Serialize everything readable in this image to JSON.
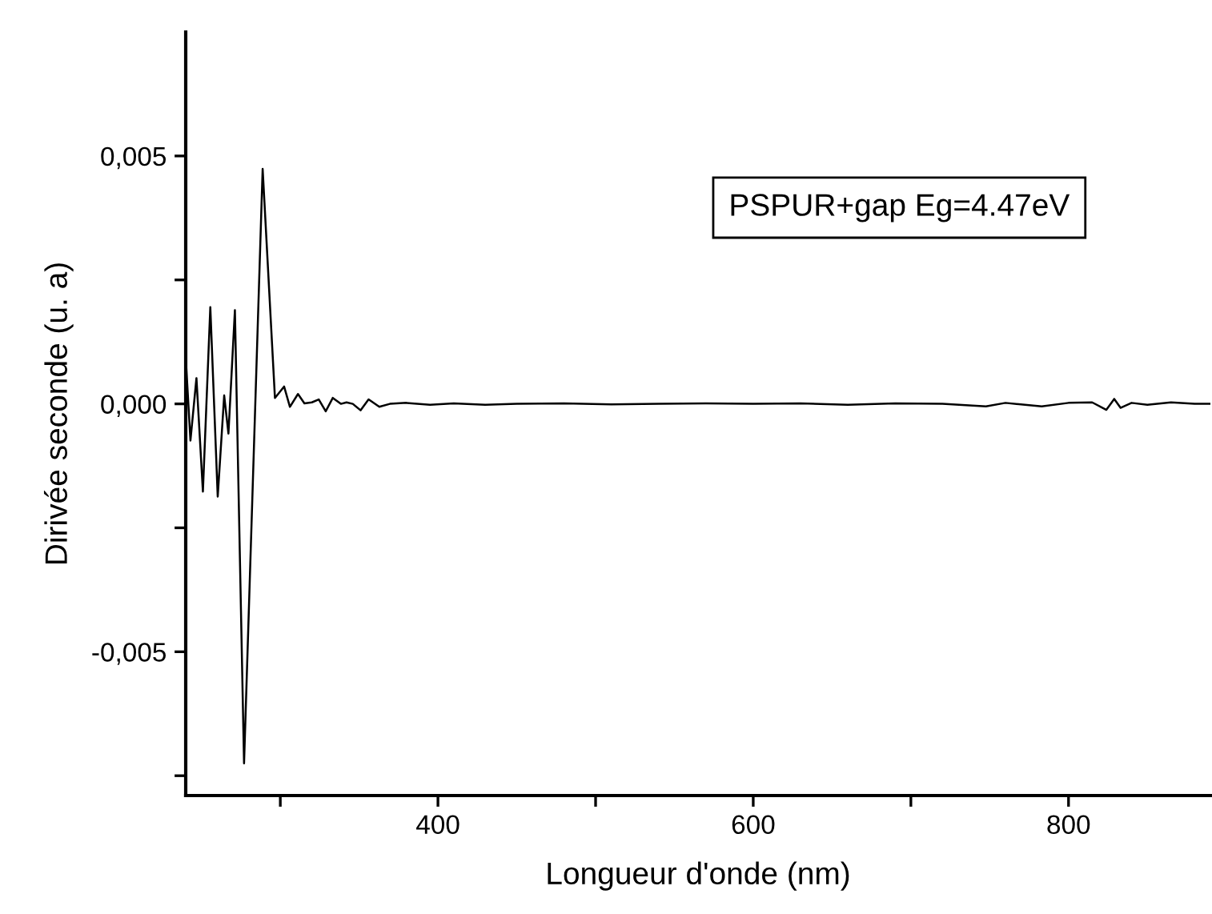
{
  "chart_data": {
    "type": "line",
    "xlabel": "Longueur d'onde (nm)",
    "ylabel": "Dirivée seconde (u. a)",
    "annotations": [
      "PSPUR+gap Eg=4.47eV"
    ],
    "x": [
      240,
      243,
      246.8,
      250.9,
      255.6,
      260.3,
      264.4,
      267.1,
      271.2,
      277,
      288.8,
      296.6,
      302.4,
      306.1,
      311.2,
      315.3,
      320,
      324.4,
      328.8,
      333.3,
      338.4,
      342,
      346,
      350.9,
      356,
      362.8,
      369.5,
      380,
      395,
      410,
      430,
      450,
      480,
      510,
      540,
      570,
      600,
      630,
      660,
      690,
      720,
      747.6,
      760,
      783,
      800,
      815,
      824,
      829,
      833,
      840,
      850,
      865,
      880,
      890
    ],
    "series": [
      {
        "color": "#000000",
        "values": [
          0.00094,
          -0.00074,
          0.00052,
          -0.00177,
          0.00195,
          -0.00187,
          0.00017,
          -0.0006,
          0.00189,
          -0.00725,
          0.00474,
          0.00012,
          0.00035,
          -6e-05,
          0.0002,
          1e-05,
          3e-05,
          9e-05,
          -0.00015,
          0.00012,
          0.0,
          3e-05,
          0.0,
          -0.00013,
          9e-05,
          -6e-05,
          0.0,
          2e-05,
          -2e-05,
          1e-05,
          -2e-05,
          0.0,
          1e-05,
          -1e-05,
          0.0,
          1e-05,
          0.0,
          1e-05,
          -2e-05,
          1e-05,
          0.0,
          -5e-05,
          2e-05,
          -5e-05,
          2e-05,
          3e-05,
          -0.00012,
          0.0001,
          -8e-05,
          2e-05,
          -2e-05,
          3e-05,
          0.0,
          0.0
        ]
      }
    ],
    "xlim": [
      240,
      890
    ],
    "ylim": [
      -0.0079,
      0.0075
    ],
    "xticks": [
      {
        "value": 300,
        "label": null
      },
      400,
      {
        "value": 500,
        "label": null
      },
      600,
      {
        "value": 700,
        "label": null
      },
      800
    ],
    "yticks": [
      {
        "value": -0.0075,
        "label": null
      },
      {
        "value": -0.005,
        "label": "-0,005"
      },
      {
        "value": -0.0025,
        "label": null
      },
      {
        "value": 0.0,
        "label": "0,000"
      },
      {
        "value": 0.0025,
        "label": null
      },
      {
        "value": 0.005,
        "label": "0,005"
      }
    ],
    "grid": false,
    "marker": "none",
    "line_style": "solid"
  }
}
